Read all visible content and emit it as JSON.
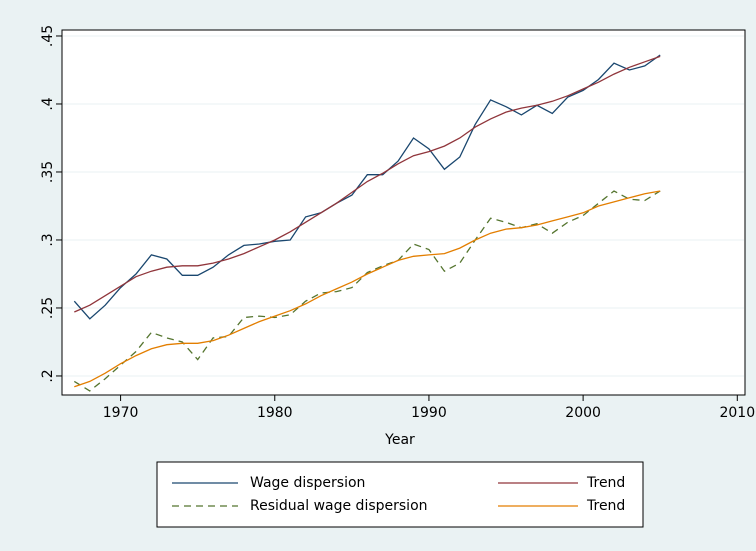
{
  "chart_data": {
    "type": "line",
    "x_label": "Year",
    "x": [
      1967,
      1968,
      1969,
      1970,
      1971,
      1972,
      1973,
      1974,
      1975,
      1976,
      1977,
      1978,
      1979,
      1980,
      1981,
      1982,
      1983,
      1984,
      1985,
      1986,
      1987,
      1988,
      1989,
      1990,
      1991,
      1992,
      1993,
      1994,
      1995,
      1996,
      1997,
      1998,
      1999,
      2000,
      2001,
      2002,
      2003,
      2004,
      2005
    ],
    "series": [
      {
        "name": "Wage dispersion",
        "color": "#1a476f",
        "dash": false,
        "values": [
          0.255,
          0.242,
          0.252,
          0.265,
          0.275,
          0.289,
          0.286,
          0.274,
          0.274,
          0.28,
          0.289,
          0.296,
          0.297,
          0.299,
          0.3,
          0.317,
          0.32,
          0.327,
          0.333,
          0.348,
          0.348,
          0.358,
          0.375,
          0.367,
          0.352,
          0.361,
          0.385,
          0.403,
          0.398,
          0.392,
          0.399,
          0.393,
          0.405,
          0.41,
          0.418,
          0.43,
          0.425,
          0.428,
          0.436
        ]
      },
      {
        "name": "Trend",
        "color": "#90353b",
        "dash": false,
        "values": [
          0.247,
          0.252,
          0.259,
          0.266,
          0.273,
          0.277,
          0.28,
          0.281,
          0.281,
          0.283,
          0.286,
          0.29,
          0.295,
          0.3,
          0.306,
          0.313,
          0.32,
          0.327,
          0.335,
          0.343,
          0.349,
          0.356,
          0.362,
          0.365,
          0.369,
          0.375,
          0.383,
          0.389,
          0.394,
          0.397,
          0.399,
          0.402,
          0.406,
          0.411,
          0.416,
          0.422,
          0.427,
          0.431,
          0.435
        ]
      },
      {
        "name": "Residual wage dispersion",
        "color": "#55752f",
        "dash": true,
        "values": [
          0.196,
          0.189,
          0.198,
          0.208,
          0.218,
          0.232,
          0.228,
          0.225,
          0.212,
          0.228,
          0.229,
          0.243,
          0.244,
          0.243,
          0.245,
          0.255,
          0.261,
          0.262,
          0.265,
          0.276,
          0.281,
          0.285,
          0.297,
          0.293,
          0.277,
          0.283,
          0.3,
          0.316,
          0.313,
          0.309,
          0.312,
          0.305,
          0.313,
          0.318,
          0.327,
          0.336,
          0.33,
          0.329,
          0.336
        ]
      },
      {
        "name": "Trend",
        "color": "#e37e00",
        "dash": false,
        "values": [
          0.192,
          0.196,
          0.202,
          0.209,
          0.215,
          0.22,
          0.223,
          0.224,
          0.224,
          0.226,
          0.23,
          0.235,
          0.24,
          0.244,
          0.248,
          0.253,
          0.259,
          0.264,
          0.269,
          0.275,
          0.28,
          0.285,
          0.288,
          0.289,
          0.29,
          0.294,
          0.3,
          0.305,
          0.308,
          0.309,
          0.311,
          0.314,
          0.317,
          0.32,
          0.325,
          0.328,
          0.331,
          0.334,
          0.336
        ]
      }
    ],
    "xlim": [
      1966.2,
      2010.5
    ],
    "xticks": [
      1970,
      1980,
      1990,
      2000,
      2010
    ],
    "ylim": [
      0.186,
      0.4544
    ],
    "yticks": [
      {
        "value": 0.2,
        "label": ".2"
      },
      {
        "value": 0.25,
        "label": ".25"
      },
      {
        "value": 0.3,
        "label": ".3"
      },
      {
        "value": 0.35,
        "label": ".35"
      },
      {
        "value": 0.4,
        "label": ".4"
      },
      {
        "value": 0.45,
        "label": ".45"
      }
    ],
    "grid": true,
    "legend": "bottom"
  }
}
